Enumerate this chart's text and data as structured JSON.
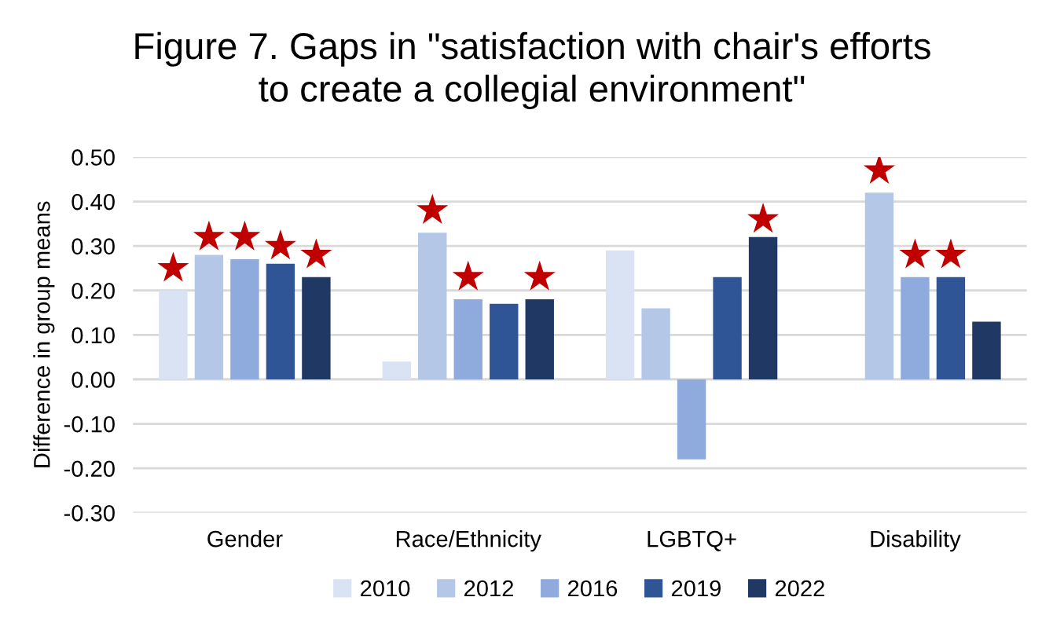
{
  "chart_data": {
    "type": "bar",
    "title": "Figure 7. Gaps in \"satisfaction with chair's efforts\nto create a collegial environment\"",
    "ylabel": "Difference in group means",
    "categories": [
      "Gender",
      "Race/Ethnicity",
      "LGBTQ+",
      "Disability"
    ],
    "series": [
      {
        "name": "2010",
        "color": "#dae3f3",
        "values": [
          0.2,
          0.04,
          0.29,
          null
        ]
      },
      {
        "name": "2012",
        "color": "#b4c7e7",
        "values": [
          0.28,
          0.33,
          0.16,
          0.42
        ]
      },
      {
        "name": "2016",
        "color": "#8faadc",
        "values": [
          0.27,
          0.18,
          -0.18,
          0.23
        ]
      },
      {
        "name": "2019",
        "color": "#2f5597",
        "values": [
          0.26,
          0.17,
          0.23,
          0.23
        ]
      },
      {
        "name": "2022",
        "color": "#203864",
        "values": [
          0.23,
          0.18,
          0.32,
          0.13
        ]
      },
      {
        "type": "scatter",
        "marker": "star",
        "color": "#c00000",
        "values": [
          0.25,
          null,
          null,
          null
        ]
      },
      {
        "type": "scatter",
        "marker": "star",
        "color": "#c00000",
        "values": [
          0.32,
          0.38,
          null,
          0.47
        ]
      },
      {
        "type": "scatter",
        "marker": "star",
        "color": "#c00000",
        "values": [
          0.32,
          0.23,
          null,
          0.28
        ]
      },
      {
        "type": "scatter",
        "marker": "star",
        "color": "#c00000",
        "values": [
          0.3,
          null,
          null,
          0.28
        ]
      },
      {
        "type": "scatter",
        "marker": "star",
        "color": "#c00000",
        "values": [
          0.28,
          0.23,
          0.36,
          null
        ]
      }
    ],
    "ylim": [
      -0.3,
      0.5
    ],
    "yticks": [
      {
        "value": -0.3,
        "label": "-0.30"
      },
      {
        "value": -0.2,
        "label": "-0.20"
      },
      {
        "value": -0.1,
        "label": "-0.10"
      },
      {
        "value": 0,
        "label": "0.00"
      },
      {
        "value": 0.1,
        "label": "0.10"
      },
      {
        "value": 0.2,
        "label": "0.20"
      },
      {
        "value": 0.3,
        "label": "0.30"
      },
      {
        "value": 0.4,
        "label": "0.40"
      },
      {
        "value": 0.5,
        "label": "0.50"
      }
    ],
    "grid": "y",
    "legend": "bottom"
  }
}
